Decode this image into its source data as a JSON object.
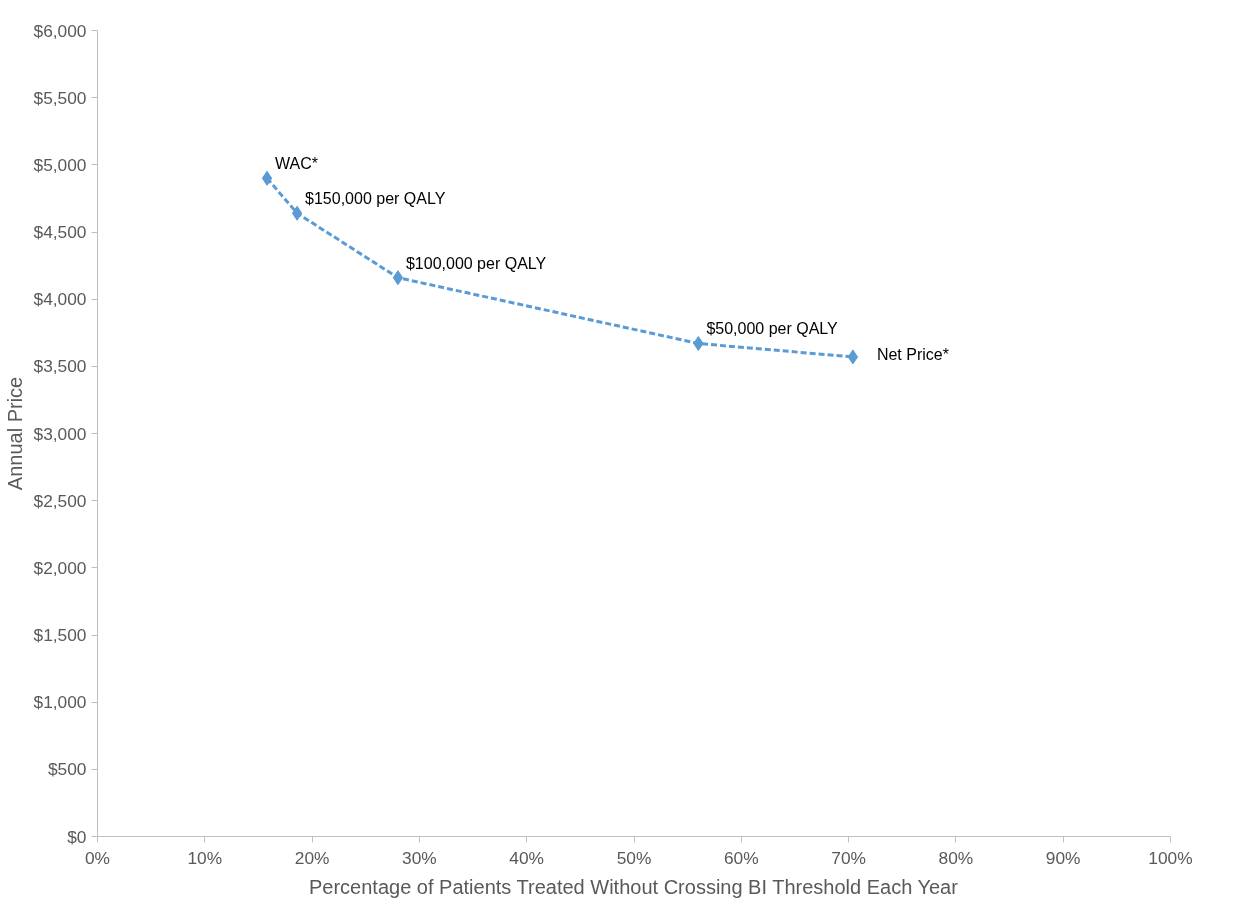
{
  "chart_data": {
    "type": "line",
    "xlabel": "Percentage of Patients Treated Without Crossing BI Threshold Each Year",
    "ylabel": "Annual Price",
    "x": [
      15.8,
      18.6,
      28.0,
      56.0,
      70.4
    ],
    "series": [
      {
        "color": "#5b9bd5",
        "values": [
          4900,
          4640,
          4160,
          3670,
          3570
        ]
      }
    ],
    "marker": "diamond",
    "line_style": "dashed",
    "grid": false,
    "xlim": [
      0,
      100
    ],
    "xticks": [
      {
        "value": 0,
        "label": "0%"
      },
      {
        "value": 10,
        "label": "10%"
      },
      {
        "value": 20,
        "label": "20%"
      },
      {
        "value": 30,
        "label": "30%"
      },
      {
        "value": 40,
        "label": "40%"
      },
      {
        "value": 50,
        "label": "50%"
      },
      {
        "value": 60,
        "label": "60%"
      },
      {
        "value": 70,
        "label": "70%"
      },
      {
        "value": 80,
        "label": "80%"
      },
      {
        "value": 90,
        "label": "90%"
      },
      {
        "value": 100,
        "label": "100%"
      }
    ],
    "ylim": [
      0,
      6000
    ],
    "yticks": [
      {
        "value": 0,
        "label": "$0"
      },
      {
        "value": 500,
        "label": "$500"
      },
      {
        "value": 1000,
        "label": "$1,000"
      },
      {
        "value": 1500,
        "label": "$1,500"
      },
      {
        "value": 2000,
        "label": "$2,000"
      },
      {
        "value": 2500,
        "label": "$2,500"
      },
      {
        "value": 3000,
        "label": "$3,000"
      },
      {
        "value": 3500,
        "label": "$3,500"
      },
      {
        "value": 4000,
        "label": "$4,000"
      },
      {
        "value": 4500,
        "label": "$4,500"
      },
      {
        "value": 5000,
        "label": "$5,000"
      },
      {
        "value": 5500,
        "label": "$5,500"
      },
      {
        "value": 6000,
        "label": "$6,000"
      }
    ],
    "annotations": [
      {
        "text": "WAC*",
        "x": 15.8,
        "y": 4900
      },
      {
        "text": "$150,000 per QALY",
        "x": 18.6,
        "y": 4640
      },
      {
        "text": "$100,000 per QALY",
        "x": 28.0,
        "y": 4160
      },
      {
        "text": "$50,000 per QALY",
        "x": 56.0,
        "y": 3670
      },
      {
        "text": "Net Price*",
        "x": 70.4,
        "y": 3570
      }
    ]
  }
}
